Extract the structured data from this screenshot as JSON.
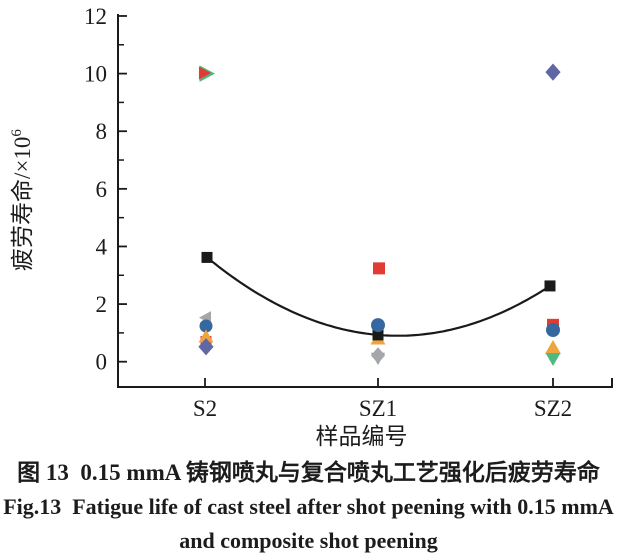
{
  "chart_data": {
    "type": "scatter",
    "xlabel": "样品编号",
    "ylabel": "疲劳寿命/×10⁶",
    "ylabel_base": "疲劳寿命/×10",
    "ylabel_sup": "6",
    "categories": [
      "S2",
      "SZ1",
      "SZ2"
    ],
    "ylim": [
      0,
      12
    ],
    "yticks": [
      0,
      2,
      4,
      6,
      8,
      10,
      12
    ],
    "yminorticks": [
      1,
      3,
      5,
      7,
      9,
      11
    ],
    "grid": false,
    "legend": "none",
    "palette": {
      "red": "#e23b33",
      "green": "#4db981",
      "blue": "#35689e",
      "orange": "#f0a43c",
      "purple": "#6067a4",
      "gray": "#a5a5ab",
      "black": "#1a1a1a"
    },
    "points": [
      {
        "category": "S2",
        "value": 10.0,
        "marker": "triangle-right",
        "color": "green",
        "size": 18,
        "dx": 1
      },
      {
        "category": "S2",
        "value": 10.02,
        "marker": "triangle-right",
        "color": "red",
        "size": 14,
        "dx": -1
      },
      {
        "category": "S2",
        "value": 3.62,
        "marker": "square",
        "color": "black",
        "size": 11,
        "dx": 2
      },
      {
        "category": "S2",
        "value": 1.53,
        "marker": "triangle-left",
        "color": "gray",
        "size": 14,
        "dx": 1
      },
      {
        "category": "S2",
        "value": 1.24,
        "marker": "circle",
        "color": "blue",
        "size": 13,
        "dx": 1
      },
      {
        "category": "S2",
        "value": 0.7,
        "marker": "square",
        "color": "red",
        "size": 11,
        "dx": 1
      },
      {
        "category": "S2",
        "value": 0.87,
        "marker": "triangle-up",
        "color": "orange",
        "size": 15,
        "dx": 1
      },
      {
        "category": "S2",
        "value": 0.52,
        "marker": "diamond",
        "color": "purple",
        "size": 16,
        "dx": 1
      },
      {
        "category": "SZ1",
        "value": 3.24,
        "marker": "square",
        "color": "red",
        "size": 12,
        "dx": 1
      },
      {
        "category": "SZ1",
        "value": 0.8,
        "marker": "triangle-up",
        "color": "orange",
        "size": 15,
        "dx": 0
      },
      {
        "category": "SZ1",
        "value": 0.93,
        "marker": "square",
        "color": "black",
        "size": 11,
        "dx": 0
      },
      {
        "category": "SZ1",
        "value": 1.27,
        "marker": "circle",
        "color": "blue",
        "size": 14,
        "dx": 0
      },
      {
        "category": "SZ1",
        "value": 0.12,
        "marker": "triangle-down",
        "color": "green",
        "size": 14,
        "dx": 0
      },
      {
        "category": "SZ1",
        "value": 0.22,
        "marker": "diamond",
        "color": "gray",
        "size": 15,
        "dx": 0
      },
      {
        "category": "SZ2",
        "value": 10.05,
        "marker": "diamond",
        "color": "purple",
        "size": 16,
        "dx": 0
      },
      {
        "category": "SZ2",
        "value": 2.63,
        "marker": "square",
        "color": "black",
        "size": 11,
        "dx": -3
      },
      {
        "category": "SZ2",
        "value": 1.28,
        "marker": "square",
        "color": "red",
        "size": 12,
        "dx": 0
      },
      {
        "category": "SZ2",
        "value": 1.1,
        "marker": "circle",
        "color": "blue",
        "size": 14,
        "dx": 0
      },
      {
        "category": "SZ2",
        "value": 0.49,
        "marker": "triangle-up",
        "color": "orange",
        "size": 16,
        "dx": 0
      },
      {
        "category": "SZ2",
        "value": 0.1,
        "marker": "triangle-down",
        "color": "green",
        "size": 15,
        "dx": 0
      }
    ],
    "trend_curve": {
      "style": "quadratic-fit",
      "color": "black",
      "through_values": [
        3.62,
        0.93,
        2.63
      ],
      "through_categories": [
        "S2",
        "SZ1",
        "SZ2"
      ]
    }
  },
  "captions": {
    "line1_cn": "图 13  0.15 mmA 铸钢喷丸与复合喷丸工艺强化后疲劳寿命",
    "line2_en": "Fig.13  Fatigue life of cast steel after shot peening with 0.15 mmA",
    "line3_en": "and composite shot peening"
  }
}
